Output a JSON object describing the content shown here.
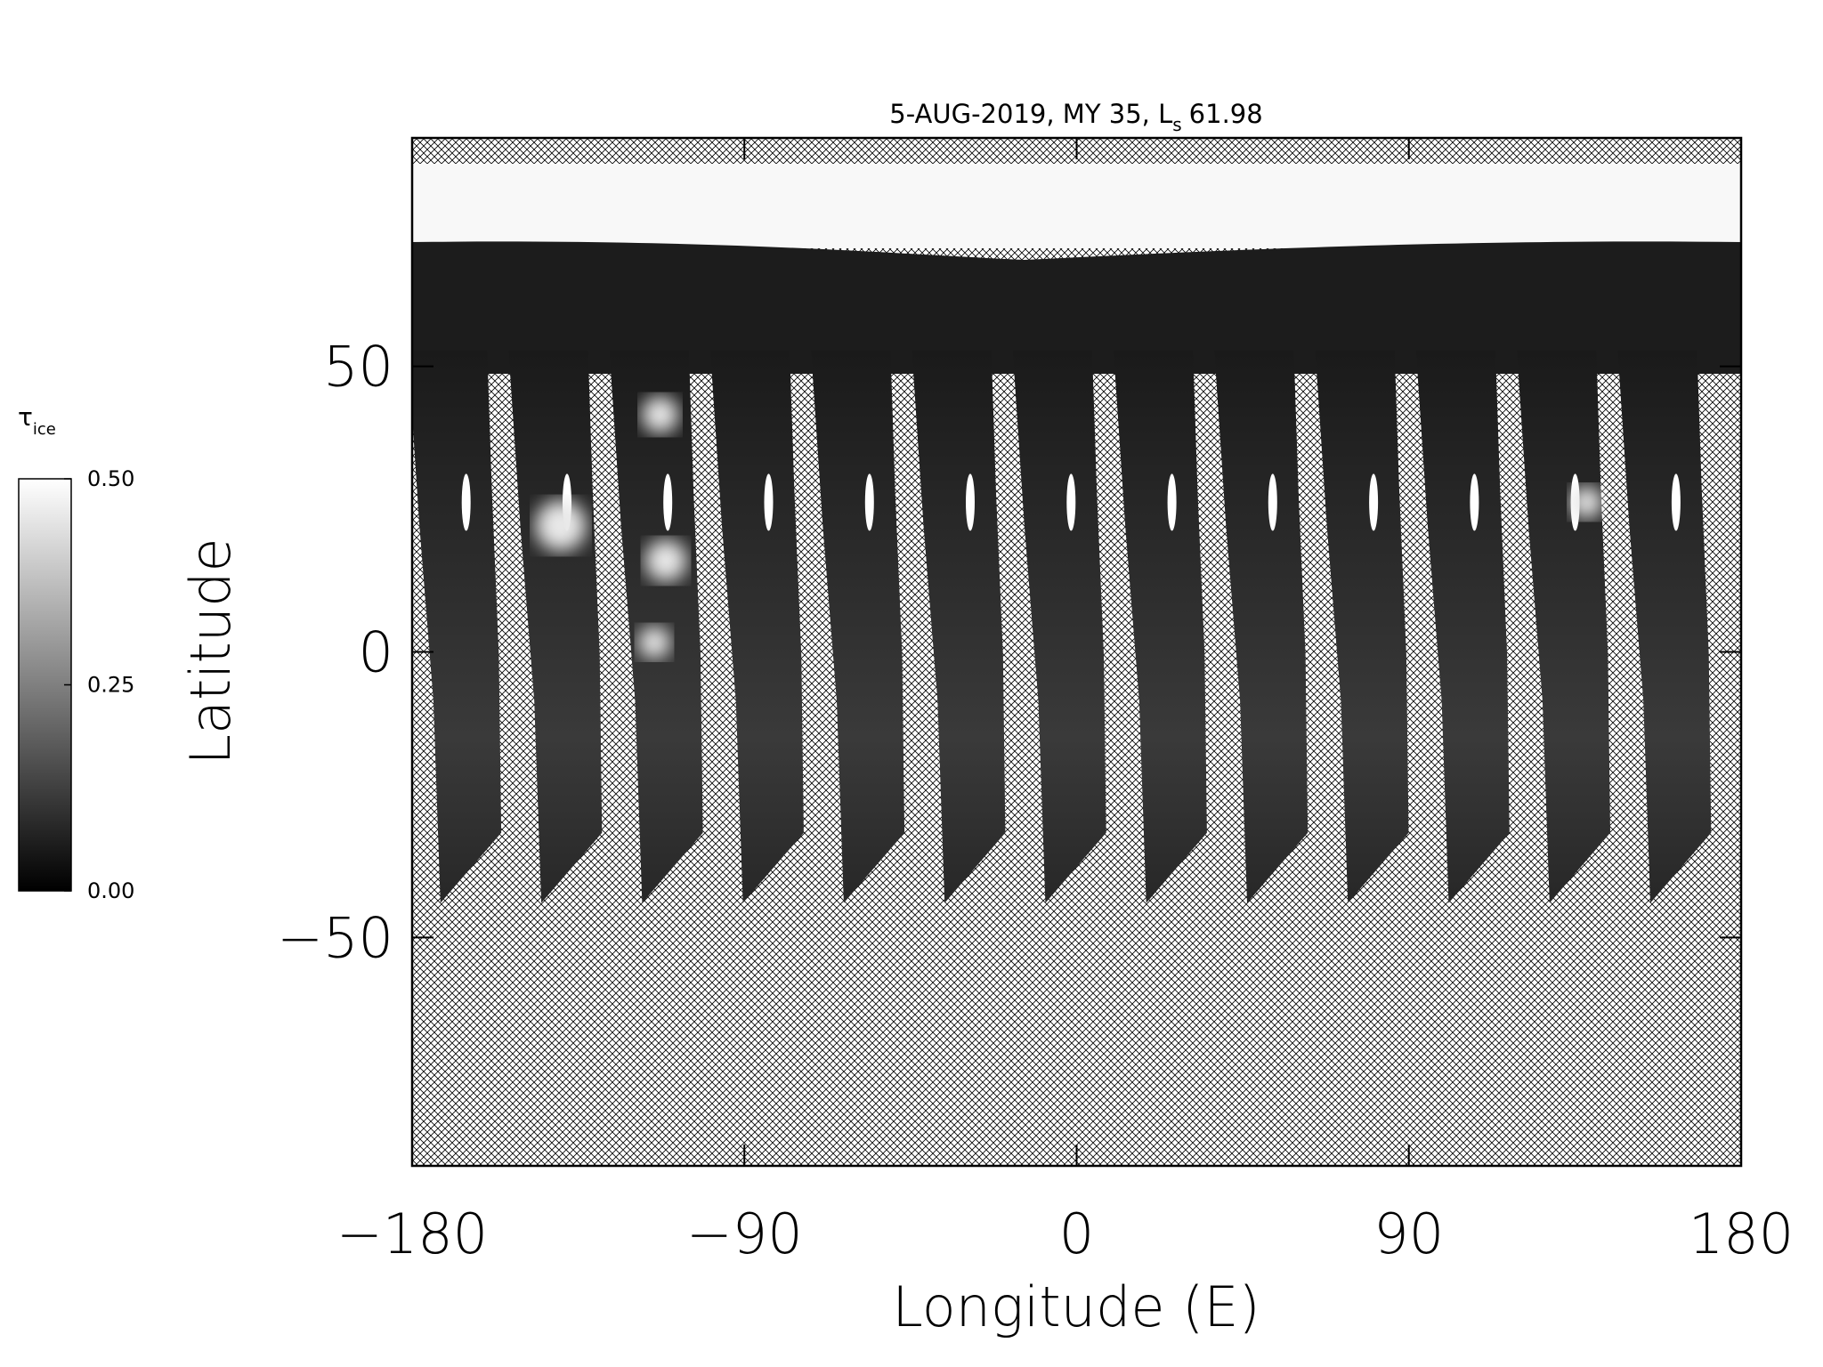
{
  "chart_data": {
    "type": "map",
    "title": {
      "text": "5-AUG-2019, MY 35,  L",
      "sub": "s",
      "after": "61.98"
    },
    "xlabel": "Longitude (E)",
    "ylabel": "Latitude",
    "xlim": [
      -180,
      180
    ],
    "ylim": [
      -90,
      90
    ],
    "xticks": [
      {
        "value": -180,
        "label": "−180"
      },
      {
        "value": -90,
        "label": "−90"
      },
      0,
      90,
      180
    ],
    "yticks": [
      {
        "value": -50,
        "label": "−50"
      },
      0,
      50
    ],
    "colorbar": {
      "label": {
        "symbol": "τ",
        "sub": "ice"
      },
      "lim": [
        0,
        0.5
      ],
      "ticks": [
        {
          "value": 0,
          "label": "0.00"
        },
        {
          "value": 0.25,
          "label": "0.25"
        },
        {
          "value": 0.5,
          "label": "0.50"
        }
      ],
      "colors": [
        "#000000",
        "#ffffff"
      ]
    }
  }
}
